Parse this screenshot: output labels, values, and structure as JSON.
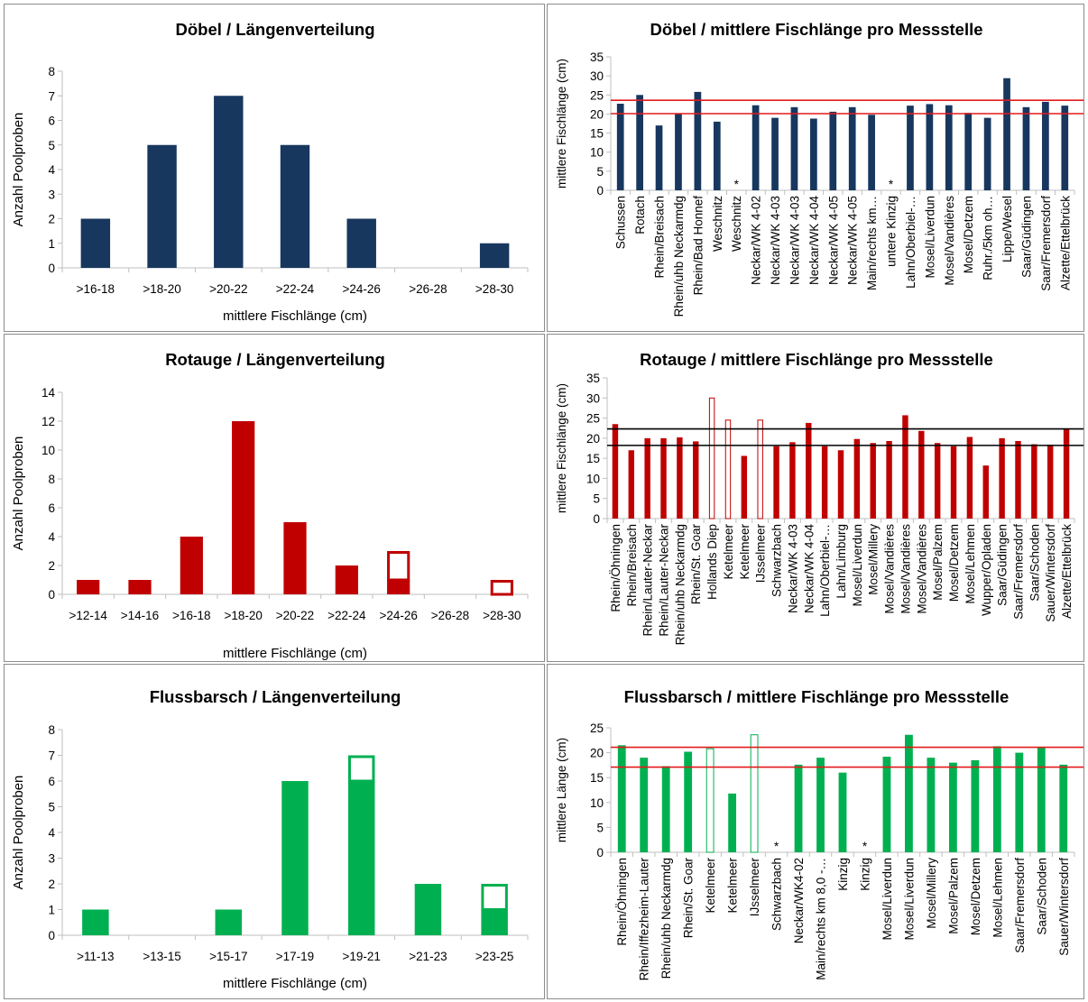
{
  "colors": {
    "doebel": "#17375e",
    "rotauge": "#c00000",
    "barsch": "#00b050",
    "refline_red": "#e31a1c",
    "refline_black": "#000000",
    "axis": "#bfbfbf",
    "border": "#8c8c8c"
  },
  "chart_data": [
    {
      "id": "doebel_hist",
      "type": "bar",
      "title": "Döbel / Längenverteilung",
      "xlabel": "mittlere Fischlänge (cm)",
      "ylabel": "Anzahl Poolproben",
      "ylim": [
        0,
        8
      ],
      "yticks": [
        "0",
        "1",
        "2",
        "3",
        "4",
        "5",
        "6",
        "7",
        "8"
      ],
      "categories": [
        ">16-18",
        ">18-20",
        ">20-22",
        ">22-24",
        ">24-26",
        ">26-28",
        ">28-30"
      ],
      "series": [
        {
          "fill": "solid",
          "values": [
            2,
            5,
            7,
            5,
            2,
            0,
            1
          ]
        }
      ],
      "color_key": "doebel"
    },
    {
      "id": "doebel_sites",
      "type": "bar",
      "title": "Döbel / mittlere Fischlänge pro Messstelle",
      "xlabel": "",
      "ylabel": "mittlere Fischlänge (cm)",
      "ylim": [
        0,
        35
      ],
      "yticks": [
        "0",
        "5",
        "10",
        "15",
        "20",
        "25",
        "30",
        "35"
      ],
      "categories": [
        "Schussen",
        "Rotach",
        "Rhein/Breisach",
        "Rhein/uhb Neckarmdg",
        "Rhein/Bad Honnef",
        "Weschnitz",
        "Weschnitz",
        "Neckar/WK 4-02",
        "Neckar/WK 4-03",
        "Neckar/WK 4-03",
        "Neckar/WK 4-04",
        "Neckar/WK 4-05",
        "Neckar/WK 4-05",
        "Main/rechts km…",
        "untere Kinzig",
        "Lahn/Oberbiel-…",
        "Mosel/Liverdun",
        "Mosel/Vandières",
        "Mosel/Detzem",
        "Ruhr./5km oh…",
        "Lippe/Wesel",
        "Saar/Güdingen",
        "Saar/Fremersdorf",
        "Alzette/Ettelbrück"
      ],
      "values": [
        22.7,
        25,
        17,
        20,
        25.8,
        18,
        null,
        22.3,
        19,
        21.8,
        18.8,
        20.6,
        21.8,
        19.8,
        null,
        22.2,
        22.6,
        22.3,
        20.3,
        19,
        29.4,
        21.8,
        23.2,
        22.2
      ],
      "markers": [
        "",
        "",
        "",
        "",
        "",
        "",
        "*",
        "",
        "",
        "",
        "",
        "",
        "",
        "",
        "*",
        "",
        "",
        "",
        "",
        "",
        "",
        "",
        "",
        ""
      ],
      "reference_lines": [
        23.6,
        20.1
      ],
      "reference_color_key": "refline_red",
      "color_key": "doebel"
    },
    {
      "id": "rotauge_hist",
      "type": "bar",
      "title": "Rotauge / Längenverteilung",
      "xlabel": "mittlere Fischlänge (cm)",
      "ylabel": "Anzahl Poolproben",
      "ylim": [
        0,
        14
      ],
      "yticks": [
        "0",
        "2",
        "4",
        "6",
        "8",
        "10",
        "12",
        "14"
      ],
      "categories": [
        ">12-14",
        ">14-16",
        ">16-18",
        ">18-20",
        ">20-22",
        ">22-24",
        ">24-26",
        ">26-28",
        ">28-30"
      ],
      "series": [
        {
          "fill": "solid",
          "values": [
            1,
            1,
            4,
            12,
            5,
            2,
            1,
            0,
            0
          ]
        },
        {
          "fill": "outline",
          "values": [
            0,
            0,
            0,
            0,
            0,
            0,
            2,
            0,
            1
          ]
        }
      ],
      "color_key": "rotauge"
    },
    {
      "id": "rotauge_sites",
      "type": "bar",
      "title": "Rotauge / mittlere Fischlänge pro Messstelle",
      "xlabel": "",
      "ylabel": "mittlere Fischlänge (cm)",
      "ylim": [
        0,
        35
      ],
      "yticks": [
        "0",
        "5",
        "10",
        "15",
        "20",
        "25",
        "30",
        "35"
      ],
      "categories": [
        "Rhein/Öhningen",
        "Rhein/Breisach",
        "Rhein/Lauter-Neckar",
        "Rhein/Lauter-Neckar",
        "Rhein/uhb Neckarmdg",
        "Rhein/St. Goar",
        "Hollands Diep",
        "Ketelmeer",
        "Ketelmeer",
        "IJsselmeer",
        "Schwarzbach",
        "Neckar/WK 4-03",
        "Neckar/WK 4-04",
        "Lahn/Oberbiel-…",
        "Lahn/Limburg",
        "Mosel/Liverdun",
        "Mosel/Millery",
        "Mosel/Vandières",
        "Mosel/Vandières",
        "Mosel/Vandières",
        "Mosel/Palzem",
        "Mosel/Detzem",
        "Mosel/Lehmen",
        "Wupper/Opladen",
        "Saar/Güdingen",
        "Saar/Fremersdorf",
        "Saar/Schoden",
        "Sauer/Wintersdorf",
        "Alzette/Ettelbrück"
      ],
      "values": [
        23.5,
        17,
        20,
        20,
        20.2,
        19.2,
        30,
        24.5,
        15.6,
        24.5,
        18,
        19,
        23.8,
        18,
        17,
        19.8,
        18.8,
        19.3,
        25.7,
        21.8,
        18.8,
        18,
        20.3,
        13.2,
        20,
        19.3,
        18.5,
        18.4,
        22.3
      ],
      "fills": [
        "solid",
        "solid",
        "solid",
        "solid",
        "solid",
        "solid",
        "outline",
        "outline",
        "solid",
        "outline",
        "solid",
        "solid",
        "solid",
        "solid",
        "solid",
        "solid",
        "solid",
        "solid",
        "solid",
        "solid",
        "solid",
        "solid",
        "solid",
        "solid",
        "solid",
        "solid",
        "solid",
        "solid",
        "solid"
      ],
      "reference_lines": [
        22.3,
        18.2
      ],
      "reference_color_key": "refline_black",
      "color_key": "rotauge"
    },
    {
      "id": "barsch_hist",
      "type": "bar",
      "title": "Flussbarsch / Längenverteilung",
      "xlabel": "mittlere Fischlänge (cm)",
      "ylabel": "Anzahl Poolproben",
      "ylim": [
        0,
        8
      ],
      "yticks": [
        "0",
        "1",
        "2",
        "3",
        "4",
        "5",
        "6",
        "7",
        "8"
      ],
      "categories": [
        ">11-13",
        ">13-15",
        ">15-17",
        ">17-19",
        ">19-21",
        ">21-23",
        ">23-25"
      ],
      "series": [
        {
          "fill": "solid",
          "values": [
            1,
            0,
            1,
            6,
            6,
            2,
            1
          ]
        },
        {
          "fill": "outline",
          "values": [
            0,
            0,
            0,
            0,
            1,
            0,
            1
          ]
        }
      ],
      "color_key": "barsch"
    },
    {
      "id": "barsch_sites",
      "type": "bar",
      "title": "Flussbarsch / mittlere Fischlänge pro Messstelle",
      "xlabel": "",
      "ylabel": "mittlere Länge (cm)",
      "ylim": [
        0,
        25
      ],
      "yticks": [
        "0",
        "5",
        "10",
        "15",
        "20",
        "25"
      ],
      "categories": [
        "Rhein/Öhningen",
        "Rhein/Iffezheim-Lauter",
        "Rhein/uhb Neckarmdg",
        "Rhein/St. Goar",
        "Ketelmeer",
        "Ketelmeer",
        "IJsselmeer",
        "Schwarzbach",
        "Neckar/WK4-02",
        "Main/rechts km 8,0 -…",
        "Kinzig",
        "Kinzig",
        "Mosel/Liverdun",
        "Mosel/Liverdun",
        "Mosel/Millery",
        "Mosel/Palzem",
        "Mosel/Detzem",
        "Mosel/Lehmen",
        "Saar/Fremersdorf",
        "Saar/Schoden",
        "Sauer/Wintersdorf"
      ],
      "values": [
        21.5,
        19,
        17.3,
        20.2,
        20.8,
        11.8,
        23.6,
        null,
        17.6,
        19,
        16,
        null,
        19.2,
        23.6,
        19,
        18,
        18.5,
        21.3,
        20,
        21.1,
        17.6
      ],
      "fills": [
        "solid",
        "solid",
        "solid",
        "solid",
        "outline",
        "solid",
        "outline",
        "solid",
        "solid",
        "solid",
        "solid",
        "solid",
        "solid",
        "solid",
        "solid",
        "solid",
        "solid",
        "solid",
        "solid",
        "solid",
        "solid"
      ],
      "markers": [
        "",
        "",
        "",
        "",
        "",
        "",
        "",
        "*",
        "",
        "",
        "",
        "*",
        "",
        "",
        "",
        "",
        "",
        "",
        "",
        "",
        ""
      ],
      "reference_lines": [
        21.1,
        17.1
      ],
      "reference_color_key": "refline_red",
      "color_key": "barsch"
    }
  ]
}
